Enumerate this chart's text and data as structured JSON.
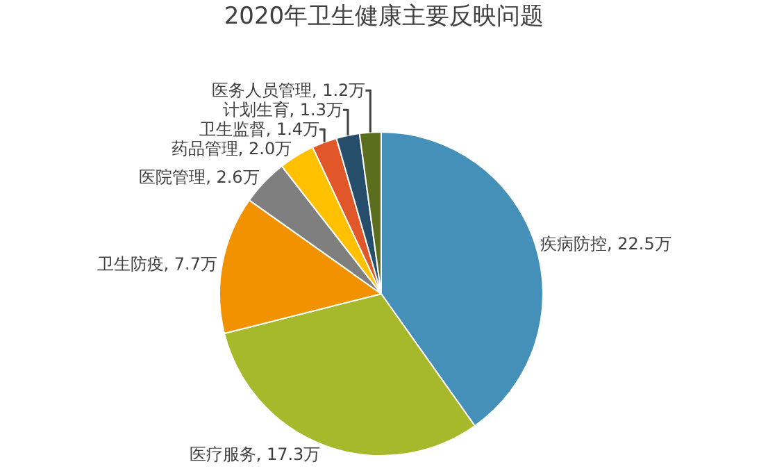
{
  "chart_data": {
    "type": "pie",
    "title": "2020年卫生健康主要反映问题",
    "categories": [
      "疾病防控",
      "医疗服务",
      "卫生防疫",
      "医院管理",
      "药品管理",
      "卫生监督",
      "计划生育",
      "医务人员管理"
    ],
    "values": [
      22.5,
      17.3,
      7.7,
      2.6,
      2.0,
      1.4,
      1.3,
      1.2
    ],
    "value_labels": [
      "22.5万",
      "17.3万",
      "7.7万",
      "2.6万",
      "2.0万",
      "1.4万",
      "1.3万",
      "1.2万"
    ],
    "colors": [
      "#4590b9",
      "#a5b92a",
      "#f39200",
      "#7f7f7f",
      "#ffc000",
      "#e2572a",
      "#264d6a",
      "#5a6e1e"
    ],
    "legend": false
  }
}
